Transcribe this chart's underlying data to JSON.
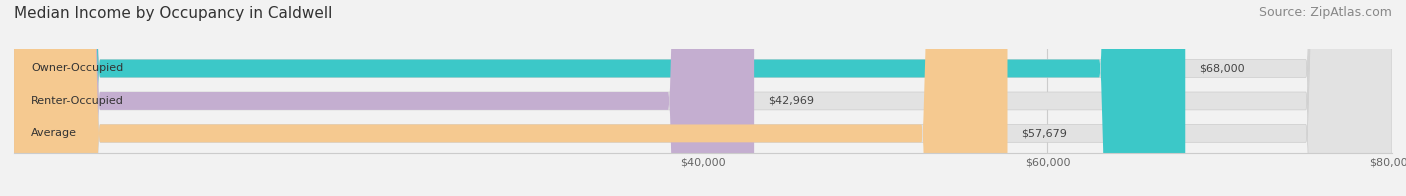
{
  "title": "Median Income by Occupancy in Caldwell",
  "source": "Source: ZipAtlas.com",
  "categories": [
    "Owner-Occupied",
    "Renter-Occupied",
    "Average"
  ],
  "values": [
    68000,
    42969,
    57679
  ],
  "labels": [
    "$68,000",
    "$42,969",
    "$57,679"
  ],
  "bar_colors": [
    "#3cc8c8",
    "#c4aed0",
    "#f5c990"
  ],
  "xlim": [
    0,
    80000
  ],
  "xticks": [
    40000,
    60000,
    80000
  ],
  "xticklabels": [
    "$40,000",
    "$60,000",
    "$80,000"
  ],
  "background_color": "#f2f2f2",
  "bar_bg_color": "#e2e2e2",
  "title_fontsize": 11,
  "source_fontsize": 9,
  "label_fontsize": 8,
  "tick_fontsize": 8,
  "bar_height": 0.55
}
